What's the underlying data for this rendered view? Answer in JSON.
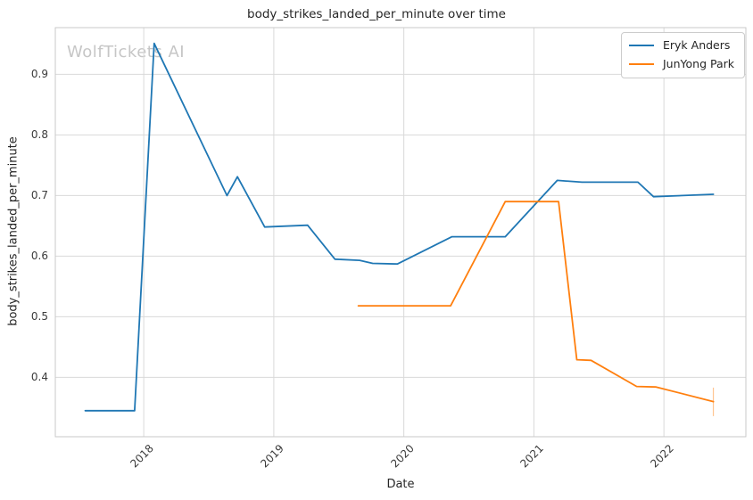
{
  "watermark_text": "WolfTickets AI",
  "colors": {
    "grid": "#d9d9d9",
    "spine": "#c9c9c9",
    "series_blue": "#1f77b4",
    "series_orange": "#ff7f0e",
    "title_text": "#262626",
    "tick_text": "#3b3b3b",
    "watermark": "#c6c6c6",
    "background": "#ffffff"
  },
  "chart_data": {
    "type": "line",
    "title": "body_strikes_landed_per_minute over time",
    "xlabel": "Date",
    "ylabel": "body_strikes_landed_per_minute",
    "x_units": "decimal_year",
    "xlim": [
      2017.32,
      2022.63
    ],
    "ylim": [
      0.302,
      0.977
    ],
    "x_ticks": [
      2018,
      2019,
      2020,
      2021,
      2022
    ],
    "y_ticks": [
      0.4,
      0.5,
      0.6,
      0.7,
      0.8,
      0.9
    ],
    "grid": true,
    "legend_position": "upper right",
    "series": [
      {
        "name": "Eryk Anders",
        "color": "#1f77b4",
        "points": [
          [
            2017.55,
            0.345
          ],
          [
            2017.93,
            0.345
          ],
          [
            2018.08,
            0.951
          ],
          [
            2018.64,
            0.7
          ],
          [
            2018.72,
            0.731
          ],
          [
            2018.93,
            0.648
          ],
          [
            2019.26,
            0.651
          ],
          [
            2019.47,
            0.595
          ],
          [
            2019.66,
            0.593
          ],
          [
            2019.76,
            0.588
          ],
          [
            2019.95,
            0.587
          ],
          [
            2020.37,
            0.632
          ],
          [
            2020.78,
            0.632
          ],
          [
            2021.18,
            0.725
          ],
          [
            2021.37,
            0.722
          ],
          [
            2021.8,
            0.722
          ],
          [
            2021.92,
            0.698
          ],
          [
            2022.38,
            0.702
          ]
        ]
      },
      {
        "name": "JunYong Park",
        "color": "#ff7f0e",
        "points": [
          [
            2019.65,
            0.518
          ],
          [
            2020.36,
            0.518
          ],
          [
            2020.78,
            0.69
          ],
          [
            2021.19,
            0.69
          ],
          [
            2021.33,
            0.429
          ],
          [
            2021.44,
            0.428
          ],
          [
            2021.79,
            0.385
          ],
          [
            2021.94,
            0.384
          ],
          [
            2022.38,
            0.36
          ]
        ],
        "error_bar_last": {
          "x": 2022.38,
          "y_low": 0.336,
          "y_high": 0.383
        }
      }
    ]
  }
}
